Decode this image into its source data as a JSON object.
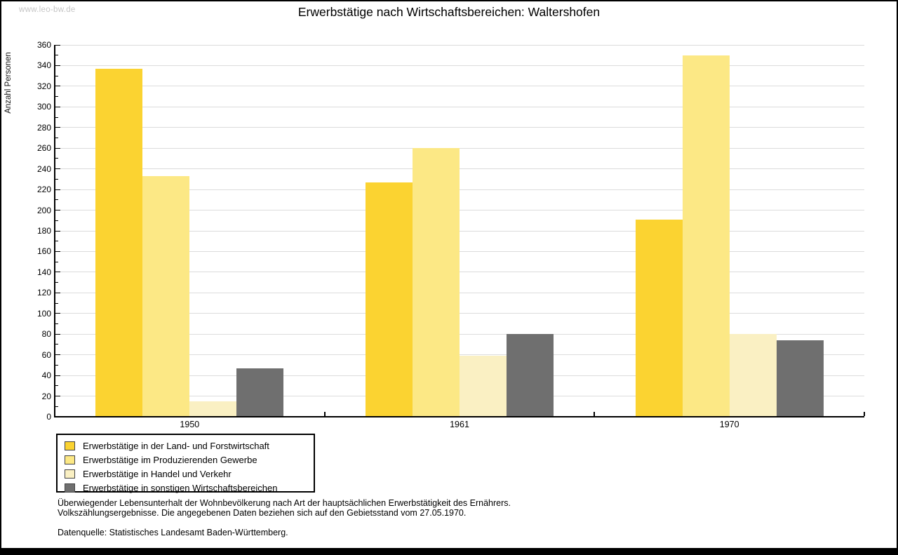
{
  "page": {
    "watermark": "www.leo-bw.de",
    "title": "Erwerbstätige nach Wirtschaftsbereichen: Waltershofen"
  },
  "chart_data": {
    "type": "bar",
    "title": "Erwerbstätige nach Wirtschaftsbereichen: Waltershofen",
    "xlabel": "",
    "ylabel": "Anzahl Personen",
    "categories": [
      "1950",
      "1961",
      "1970"
    ],
    "series": [
      {
        "name": "Erwerbstätige in der Land- und Forstwirtschaft",
        "color": "#FBD331",
        "values": [
          337,
          227,
          191
        ]
      },
      {
        "name": "Erwerbstätige im Produzierenden Gewerbe",
        "color": "#FCE885",
        "values": [
          233,
          260,
          350
        ]
      },
      {
        "name": "Erwerbstätige in Handel und Verkehr",
        "color": "#FAF0C3",
        "values": [
          15,
          59,
          80
        ]
      },
      {
        "name": "Erwerbstätige in sonstigen Wirtschaftsbereichen",
        "color": "#6F6F6F",
        "values": [
          47,
          80,
          74
        ]
      }
    ],
    "ylim": [
      0,
      360
    ],
    "ytick_step": 20,
    "yminor_step": 10,
    "grid": true,
    "gridline_color": "#dcdcdc",
    "legend_position": "bottom-left"
  },
  "footer": {
    "line1": "Überwiegender Lebensunterhalt der Wohnbevölkerung nach Art der hauptsächlichen Erwerbstätigkeit des Ernährers.",
    "line2": "Volkszählungsergebnisse. Die angegebenen Daten beziehen sich auf den Gebietsstand vom 27.05.1970.",
    "source": "Datenquelle: Statistisches Landesamt Baden-Württemberg."
  }
}
